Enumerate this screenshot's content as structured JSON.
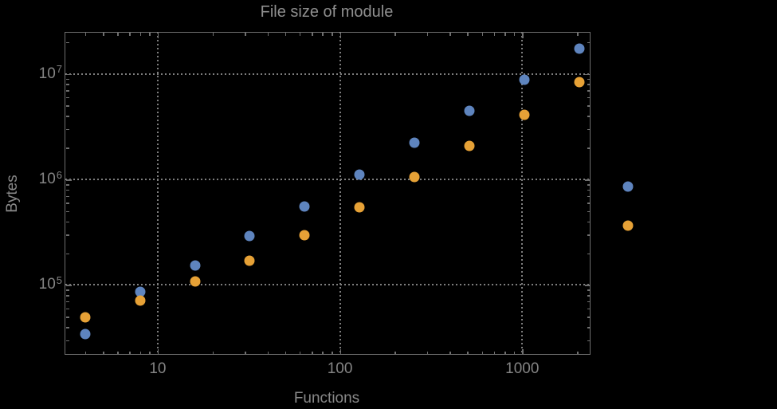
{
  "window": {
    "background_color": "#000000",
    "frame_color": "#6f6f6f",
    "grid_color": "#7e7e7e",
    "label_color": "#848484",
    "title_color": "#8f8f8f"
  },
  "chart_data": {
    "type": "scatter",
    "title": "File size of module",
    "xlabel": "Functions",
    "ylabel": "Bytes",
    "x_scale": "log",
    "y_scale": "log",
    "xlim": [
      3.1,
      2360
    ],
    "ylim": [
      22000,
      25000000
    ],
    "grid": "dotted, at decades",
    "legend": "none",
    "x_major_ticks": [
      {
        "value": 10,
        "label": "10"
      },
      {
        "value": 100,
        "label": "100"
      },
      {
        "value": 1000,
        "label": "1000"
      }
    ],
    "y_major_ticks": [
      {
        "value": 100000,
        "mantissa": "10",
        "exponent": "5"
      },
      {
        "value": 1000000,
        "mantissa": "10",
        "exponent": "6"
      },
      {
        "value": 10000000,
        "mantissa": "10",
        "exponent": "7"
      }
    ],
    "x": [
      4,
      8,
      16,
      32,
      64,
      128,
      256,
      512,
      1024,
      2048,
      3800
    ],
    "series": [
      {
        "name": "blue",
        "color": "#5E84BE",
        "values": [
          34000,
          86000,
          153000,
          290000,
          552000,
          1110000,
          2230000,
          4460000,
          8790000,
          17300000,
          856000
        ]
      },
      {
        "name": "orange",
        "color": "#E6A136",
        "values": [
          49300,
          71000,
          108000,
          170000,
          296000,
          544000,
          1050000,
          2080000,
          4090000,
          8340000,
          365000
        ]
      }
    ],
    "note_visible_in_pixels": "last x pair (x≈3800) is drawn outside the right edge of the plot frame"
  }
}
